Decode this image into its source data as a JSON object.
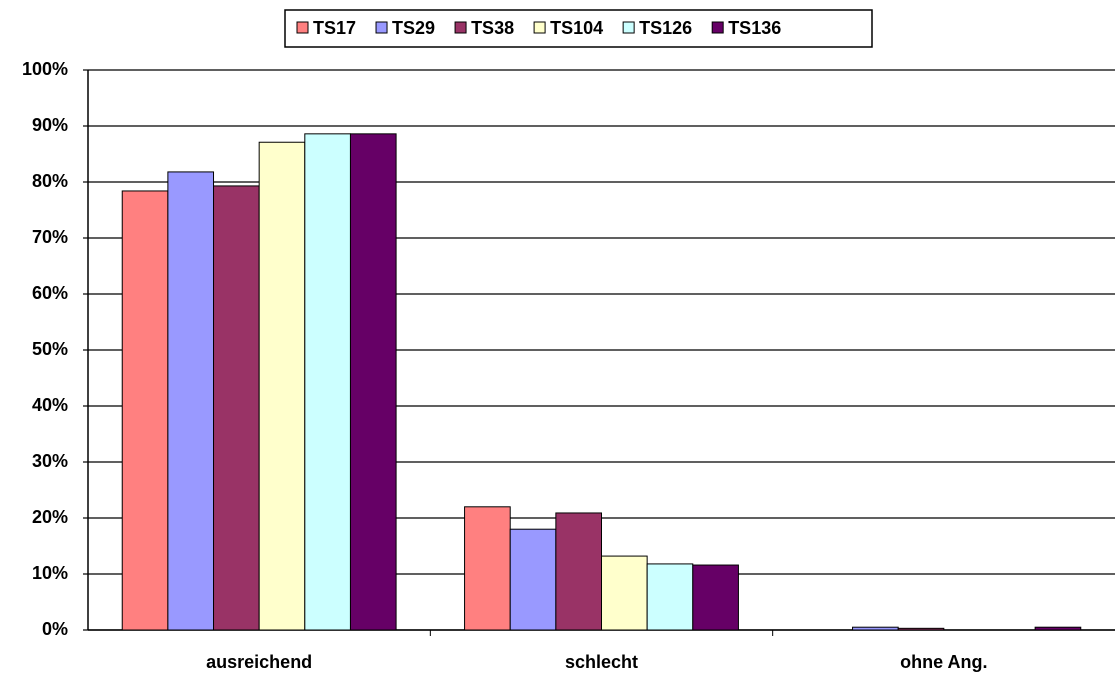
{
  "chart_data": {
    "type": "bar",
    "categories": [
      "ausreichend",
      "schlecht",
      "ohne Ang."
    ],
    "series": [
      {
        "name": "TS17",
        "color": "#ff8080",
        "values": [
          78.4,
          22.0,
          0
        ]
      },
      {
        "name": "TS29",
        "color": "#9999ff",
        "values": [
          81.8,
          18.0,
          0.5
        ]
      },
      {
        "name": "TS38",
        "color": "#993366",
        "values": [
          79.3,
          20.9,
          0.3
        ]
      },
      {
        "name": "TS104",
        "color": "#ffffcc",
        "values": [
          87.1,
          13.2,
          0
        ]
      },
      {
        "name": "TS126",
        "color": "#ccffff",
        "values": [
          88.6,
          11.8,
          0
        ]
      },
      {
        "name": "TS136",
        "color": "#660066",
        "values": [
          88.6,
          11.6,
          0.5
        ]
      }
    ],
    "ylim": [
      0,
      100
    ],
    "yticks": [
      {
        "value": 0,
        "label": "0%"
      },
      {
        "value": 10,
        "label": "10%"
      },
      {
        "value": 20,
        "label": "20%"
      },
      {
        "value": 30,
        "label": "30%"
      },
      {
        "value": 40,
        "label": "40%"
      },
      {
        "value": 50,
        "label": "50%"
      },
      {
        "value": 60,
        "label": "60%"
      },
      {
        "value": 70,
        "label": "70%"
      },
      {
        "value": 80,
        "label": "80%"
      },
      {
        "value": 90,
        "label": "90%"
      },
      {
        "value": 100,
        "label": "100%"
      }
    ],
    "grid": true,
    "legend": "top"
  }
}
